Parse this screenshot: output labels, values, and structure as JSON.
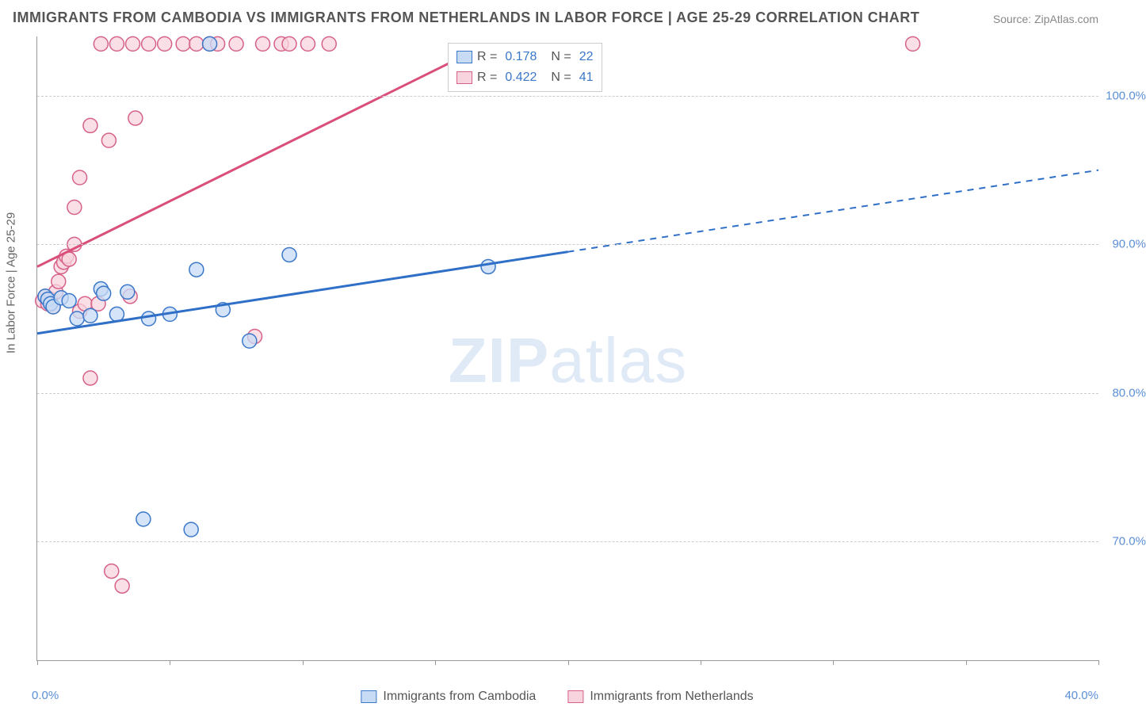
{
  "title": "IMMIGRANTS FROM CAMBODIA VS IMMIGRANTS FROM NETHERLANDS IN LABOR FORCE | AGE 25-29 CORRELATION CHART",
  "source": "Source: ZipAtlas.com",
  "yaxis_title": "In Labor Force | Age 25-29",
  "watermark_bold": "ZIP",
  "watermark_light": "atlas",
  "chart": {
    "type": "scatter",
    "xlim": [
      0,
      40
    ],
    "ylim": [
      62,
      104
    ],
    "x_ticks": [
      0,
      5,
      10,
      15,
      20,
      25,
      30,
      35,
      40
    ],
    "y_gridlines": [
      70,
      80,
      90,
      100
    ],
    "y_tick_labels": [
      "70.0%",
      "80.0%",
      "90.0%",
      "100.0%"
    ],
    "x_min_label": "0.0%",
    "x_max_label": "40.0%",
    "grid_color": "#cccccc",
    "plot_border_color": "#999999",
    "series": [
      {
        "name": "Immigrants from Cambodia",
        "marker_fill": "#c7dbf5",
        "marker_stroke": "#3b78c9",
        "line_color": "#2f6fc7",
        "marker_radius": 9,
        "trend": {
          "x1": 0,
          "y1": 84,
          "x2": 20,
          "y2": 89.5,
          "x2_ext": 40,
          "y2_ext": 95
        },
        "solid_until_x": 20,
        "R": "0.178",
        "N": "22",
        "points": [
          [
            0.3,
            86.5
          ],
          [
            0.4,
            86.3
          ],
          [
            0.5,
            86.0
          ],
          [
            0.6,
            85.8
          ],
          [
            0.9,
            86.4
          ],
          [
            1.2,
            86.2
          ],
          [
            1.5,
            85.0
          ],
          [
            2.0,
            85.2
          ],
          [
            2.4,
            87.0
          ],
          [
            2.5,
            86.7
          ],
          [
            3.0,
            85.3
          ],
          [
            3.4,
            86.8
          ],
          [
            4.0,
            71.5
          ],
          [
            4.2,
            85.0
          ],
          [
            5.0,
            85.3
          ],
          [
            5.8,
            70.8
          ],
          [
            6.0,
            88.3
          ],
          [
            6.5,
            103.5
          ],
          [
            7.0,
            85.6
          ],
          [
            8.0,
            83.5
          ],
          [
            9.5,
            89.3
          ],
          [
            17.0,
            88.5
          ]
        ]
      },
      {
        "name": "Immigrants from Netherlands",
        "marker_fill": "#f8d4de",
        "marker_stroke": "#d6628a",
        "line_color": "#d94f7a",
        "marker_radius": 9,
        "trend": {
          "x1": 0,
          "y1": 88.5,
          "x2": 17,
          "y2": 103.5,
          "x2_ext": 17,
          "y2_ext": 103.5
        },
        "solid_until_x": 17,
        "R": "0.422",
        "N": "41",
        "points": [
          [
            0.2,
            86.2
          ],
          [
            0.3,
            86.5
          ],
          [
            0.4,
            86.0
          ],
          [
            0.5,
            86.3
          ],
          [
            0.6,
            85.8
          ],
          [
            0.7,
            86.8
          ],
          [
            0.8,
            87.5
          ],
          [
            0.9,
            88.5
          ],
          [
            1.0,
            88.8
          ],
          [
            1.1,
            89.2
          ],
          [
            1.2,
            89.0
          ],
          [
            1.4,
            90.0
          ],
          [
            1.4,
            92.5
          ],
          [
            1.6,
            94.5
          ],
          [
            1.6,
            85.5
          ],
          [
            1.8,
            86.0
          ],
          [
            2.0,
            98.0
          ],
          [
            2.0,
            81.0
          ],
          [
            2.3,
            86.0
          ],
          [
            2.4,
            103.5
          ],
          [
            2.7,
            97.0
          ],
          [
            2.8,
            68.0
          ],
          [
            3.0,
            103.5
          ],
          [
            3.2,
            67.0
          ],
          [
            3.5,
            86.5
          ],
          [
            3.6,
            103.5
          ],
          [
            3.7,
            98.5
          ],
          [
            4.2,
            103.5
          ],
          [
            4.8,
            103.5
          ],
          [
            5.5,
            103.5
          ],
          [
            6.0,
            103.5
          ],
          [
            6.5,
            103.5
          ],
          [
            6.8,
            103.5
          ],
          [
            7.5,
            103.5
          ],
          [
            8.2,
            83.8
          ],
          [
            8.5,
            103.5
          ],
          [
            9.2,
            103.5
          ],
          [
            9.5,
            103.5
          ],
          [
            10.2,
            103.5
          ],
          [
            11.0,
            103.5
          ],
          [
            33.0,
            103.5
          ]
        ]
      }
    ]
  },
  "legend_r_label": "R =",
  "legend_n_label": "N =",
  "colors": {
    "axis_value": "#5b8fd6",
    "text": "#555555"
  }
}
